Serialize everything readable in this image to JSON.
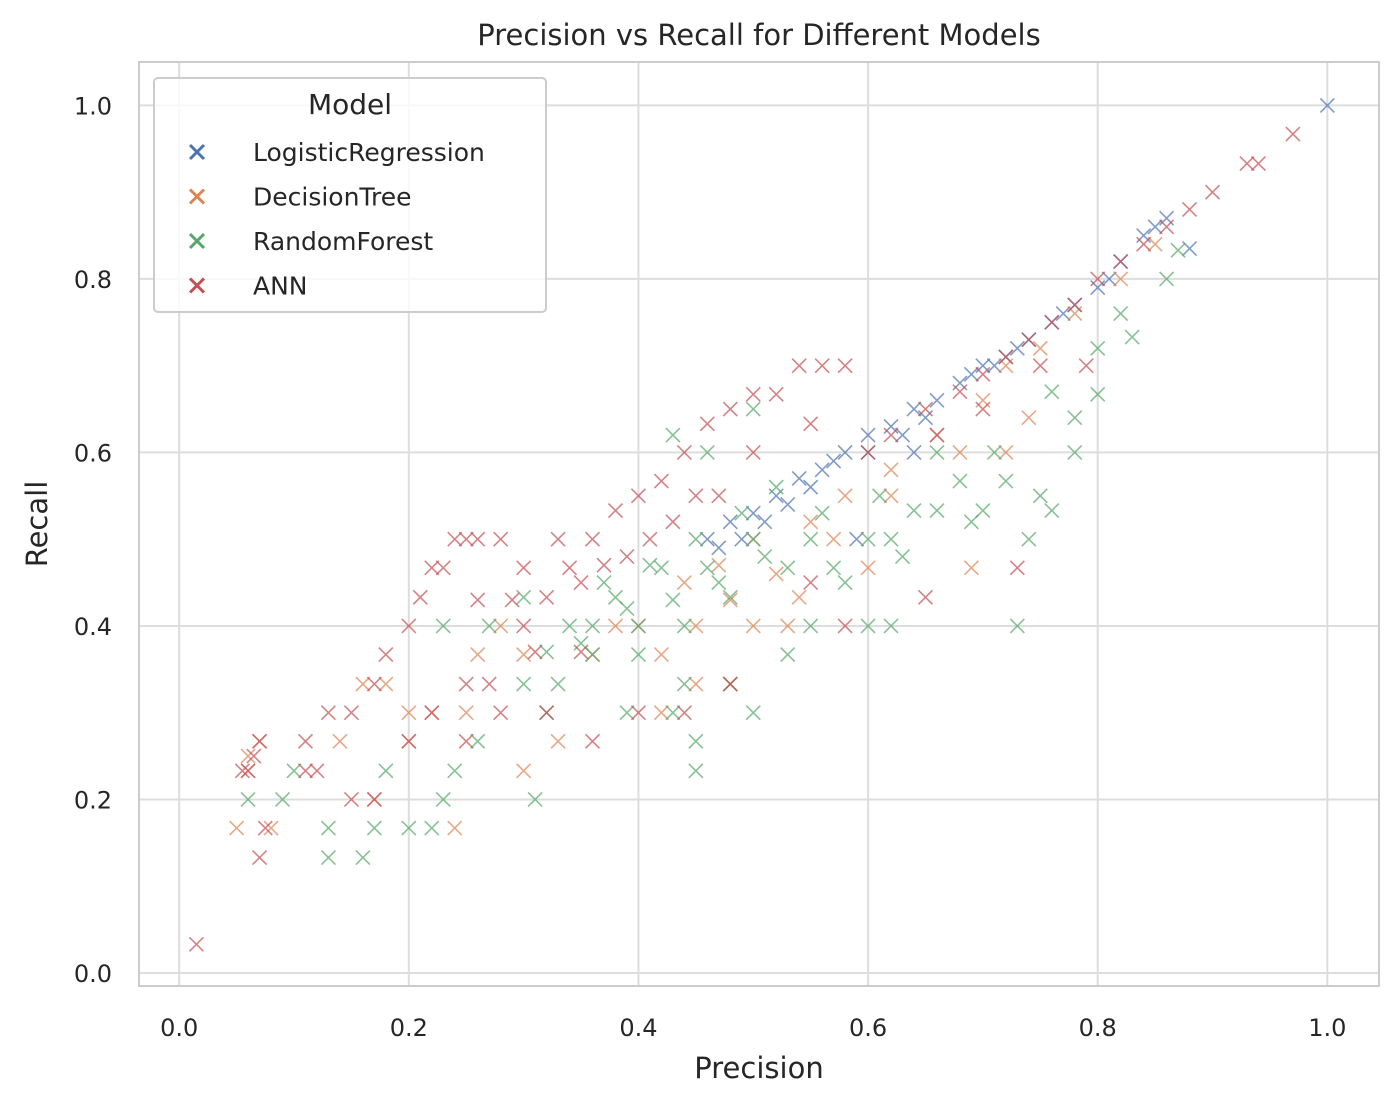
{
  "chart_data": {
    "type": "scatter",
    "title": "Precision vs Recall for Different Models",
    "xlabel": "Precision",
    "ylabel": "Recall",
    "xlim": [
      -0.035,
      1.045
    ],
    "ylim": [
      -0.015,
      1.05
    ],
    "xticks": [
      "0.0",
      "0.2",
      "0.4",
      "0.6",
      "0.8",
      "1.0"
    ],
    "yticks": [
      "0.0",
      "0.2",
      "0.4",
      "0.6",
      "0.8",
      "1.0"
    ],
    "grid": true,
    "marker": "x",
    "legend": {
      "title": "Model",
      "position": "top-left"
    },
    "series": [
      {
        "name": "LogisticRegression",
        "color": "#4c72b0",
        "points": [
          [
            1.0,
            1.0
          ],
          [
            0.88,
            0.835
          ],
          [
            0.86,
            0.87
          ],
          [
            0.84,
            0.85
          ],
          [
            0.82,
            0.82
          ],
          [
            0.8,
            0.79
          ],
          [
            0.78,
            0.77
          ],
          [
            0.76,
            0.75
          ],
          [
            0.74,
            0.73
          ],
          [
            0.72,
            0.71
          ],
          [
            0.7,
            0.7
          ],
          [
            0.68,
            0.68
          ],
          [
            0.66,
            0.66
          ],
          [
            0.64,
            0.65
          ],
          [
            0.62,
            0.63
          ],
          [
            0.6,
            0.62
          ],
          [
            0.58,
            0.6
          ],
          [
            0.56,
            0.58
          ],
          [
            0.54,
            0.57
          ],
          [
            0.52,
            0.55
          ],
          [
            0.5,
            0.53
          ],
          [
            0.48,
            0.52
          ],
          [
            0.46,
            0.5
          ],
          [
            0.6,
            0.6
          ],
          [
            0.55,
            0.56
          ],
          [
            0.53,
            0.54
          ],
          [
            0.51,
            0.52
          ],
          [
            0.49,
            0.5
          ],
          [
            0.47,
            0.49
          ],
          [
            0.65,
            0.64
          ],
          [
            0.57,
            0.59
          ],
          [
            0.63,
            0.62
          ],
          [
            0.69,
            0.69
          ],
          [
            0.73,
            0.72
          ],
          [
            0.77,
            0.76
          ],
          [
            0.81,
            0.8
          ],
          [
            0.85,
            0.86
          ],
          [
            0.59,
            0.5
          ],
          [
            0.64,
            0.6
          ],
          [
            0.71,
            0.7
          ]
        ]
      },
      {
        "name": "DecisionTree",
        "color": "#dd8452",
        "points": [
          [
            0.05,
            0.167
          ],
          [
            0.06,
            0.25
          ],
          [
            0.06,
            0.233
          ],
          [
            0.07,
            0.267
          ],
          [
            0.08,
            0.167
          ],
          [
            0.24,
            0.167
          ],
          [
            0.17,
            0.2
          ],
          [
            0.14,
            0.267
          ],
          [
            0.2,
            0.267
          ],
          [
            0.22,
            0.3
          ],
          [
            0.25,
            0.3
          ],
          [
            0.3,
            0.233
          ],
          [
            0.33,
            0.267
          ],
          [
            0.42,
            0.3
          ],
          [
            0.45,
            0.333
          ],
          [
            0.48,
            0.333
          ],
          [
            0.5,
            0.4
          ],
          [
            0.53,
            0.4
          ],
          [
            0.54,
            0.433
          ],
          [
            0.6,
            0.467
          ],
          [
            0.69,
            0.467
          ],
          [
            0.45,
            0.4
          ],
          [
            0.42,
            0.367
          ],
          [
            0.4,
            0.4
          ],
          [
            0.38,
            0.4
          ],
          [
            0.36,
            0.367
          ],
          [
            0.44,
            0.45
          ],
          [
            0.47,
            0.47
          ],
          [
            0.5,
            0.5
          ],
          [
            0.55,
            0.52
          ],
          [
            0.58,
            0.55
          ],
          [
            0.62,
            0.58
          ],
          [
            0.66,
            0.62
          ],
          [
            0.7,
            0.66
          ],
          [
            0.72,
            0.7
          ],
          [
            0.75,
            0.72
          ],
          [
            0.78,
            0.76
          ],
          [
            0.82,
            0.8
          ],
          [
            0.85,
            0.84
          ],
          [
            0.72,
            0.6
          ],
          [
            0.74,
            0.64
          ],
          [
            0.68,
            0.6
          ],
          [
            0.62,
            0.55
          ],
          [
            0.57,
            0.5
          ],
          [
            0.52,
            0.46
          ],
          [
            0.48,
            0.43
          ],
          [
            0.28,
            0.4
          ],
          [
            0.3,
            0.367
          ],
          [
            0.2,
            0.3
          ],
          [
            0.16,
            0.333
          ],
          [
            0.18,
            0.333
          ],
          [
            0.26,
            0.367
          ]
        ]
      },
      {
        "name": "RandomForest",
        "color": "#55a868",
        "points": [
          [
            0.06,
            0.2
          ],
          [
            0.09,
            0.2
          ],
          [
            0.1,
            0.233
          ],
          [
            0.13,
            0.167
          ],
          [
            0.13,
            0.133
          ],
          [
            0.16,
            0.133
          ],
          [
            0.17,
            0.167
          ],
          [
            0.2,
            0.167
          ],
          [
            0.22,
            0.167
          ],
          [
            0.23,
            0.2
          ],
          [
            0.31,
            0.2
          ],
          [
            0.18,
            0.233
          ],
          [
            0.24,
            0.233
          ],
          [
            0.26,
            0.267
          ],
          [
            0.32,
            0.3
          ],
          [
            0.39,
            0.3
          ],
          [
            0.43,
            0.3
          ],
          [
            0.45,
            0.267
          ],
          [
            0.45,
            0.233
          ],
          [
            0.5,
            0.3
          ],
          [
            0.53,
            0.367
          ],
          [
            0.55,
            0.4
          ],
          [
            0.6,
            0.4
          ],
          [
            0.62,
            0.4
          ],
          [
            0.73,
            0.4
          ],
          [
            0.48,
            0.333
          ],
          [
            0.44,
            0.333
          ],
          [
            0.4,
            0.367
          ],
          [
            0.36,
            0.367
          ],
          [
            0.33,
            0.333
          ],
          [
            0.3,
            0.333
          ],
          [
            0.27,
            0.4
          ],
          [
            0.23,
            0.4
          ],
          [
            0.3,
            0.433
          ],
          [
            0.34,
            0.4
          ],
          [
            0.38,
            0.433
          ],
          [
            0.42,
            0.467
          ],
          [
            0.46,
            0.467
          ],
          [
            0.5,
            0.5
          ],
          [
            0.55,
            0.5
          ],
          [
            0.6,
            0.5
          ],
          [
            0.66,
            0.533
          ],
          [
            0.7,
            0.533
          ],
          [
            0.74,
            0.5
          ],
          [
            0.76,
            0.533
          ],
          [
            0.78,
            0.6
          ],
          [
            0.8,
            0.667
          ],
          [
            0.83,
            0.733
          ],
          [
            0.86,
            0.8
          ],
          [
            0.87,
            0.833
          ],
          [
            0.72,
            0.567
          ],
          [
            0.68,
            0.567
          ],
          [
            0.64,
            0.533
          ],
          [
            0.62,
            0.5
          ],
          [
            0.57,
            0.467
          ],
          [
            0.53,
            0.467
          ],
          [
            0.48,
            0.433
          ],
          [
            0.44,
            0.4
          ],
          [
            0.4,
            0.4
          ],
          [
            0.36,
            0.4
          ],
          [
            0.58,
            0.45
          ],
          [
            0.63,
            0.48
          ],
          [
            0.69,
            0.52
          ],
          [
            0.75,
            0.55
          ],
          [
            0.71,
            0.6
          ],
          [
            0.66,
            0.6
          ],
          [
            0.61,
            0.55
          ],
          [
            0.56,
            0.53
          ],
          [
            0.51,
            0.48
          ],
          [
            0.47,
            0.45
          ],
          [
            0.43,
            0.43
          ],
          [
            0.39,
            0.42
          ],
          [
            0.35,
            0.38
          ],
          [
            0.32,
            0.37
          ],
          [
            0.37,
            0.45
          ],
          [
            0.41,
            0.47
          ],
          [
            0.45,
            0.5
          ],
          [
            0.49,
            0.53
          ],
          [
            0.52,
            0.56
          ],
          [
            0.46,
            0.6
          ],
          [
            0.43,
            0.62
          ],
          [
            0.5,
            0.65
          ],
          [
            0.78,
            0.64
          ],
          [
            0.76,
            0.67
          ],
          [
            0.8,
            0.72
          ],
          [
            0.82,
            0.76
          ]
        ]
      },
      {
        "name": "ANN",
        "color": "#c44e52",
        "points": [
          [
            0.015,
            0.033
          ],
          [
            0.055,
            0.233
          ],
          [
            0.06,
            0.233
          ],
          [
            0.065,
            0.25
          ],
          [
            0.07,
            0.267
          ],
          [
            0.075,
            0.167
          ],
          [
            0.07,
            0.133
          ],
          [
            0.12,
            0.233
          ],
          [
            0.11,
            0.233
          ],
          [
            0.15,
            0.2
          ],
          [
            0.17,
            0.2
          ],
          [
            0.11,
            0.267
          ],
          [
            0.13,
            0.3
          ],
          [
            0.15,
            0.3
          ],
          [
            0.17,
            0.333
          ],
          [
            0.18,
            0.367
          ],
          [
            0.2,
            0.4
          ],
          [
            0.21,
            0.433
          ],
          [
            0.22,
            0.467
          ],
          [
            0.23,
            0.467
          ],
          [
            0.24,
            0.5
          ],
          [
            0.25,
            0.5
          ],
          [
            0.26,
            0.5
          ],
          [
            0.28,
            0.5
          ],
          [
            0.2,
            0.267
          ],
          [
            0.22,
            0.3
          ],
          [
            0.25,
            0.333
          ],
          [
            0.27,
            0.333
          ],
          [
            0.3,
            0.4
          ],
          [
            0.32,
            0.433
          ],
          [
            0.34,
            0.467
          ],
          [
            0.36,
            0.5
          ],
          [
            0.38,
            0.533
          ],
          [
            0.4,
            0.55
          ],
          [
            0.42,
            0.567
          ],
          [
            0.44,
            0.6
          ],
          [
            0.46,
            0.633
          ],
          [
            0.48,
            0.65
          ],
          [
            0.5,
            0.667
          ],
          [
            0.52,
            0.667
          ],
          [
            0.54,
            0.7
          ],
          [
            0.56,
            0.7
          ],
          [
            0.58,
            0.7
          ],
          [
            0.55,
            0.633
          ],
          [
            0.45,
            0.55
          ],
          [
            0.5,
            0.6
          ],
          [
            0.6,
            0.6
          ],
          [
            0.62,
            0.62
          ],
          [
            0.65,
            0.65
          ],
          [
            0.68,
            0.67
          ],
          [
            0.7,
            0.69
          ],
          [
            0.72,
            0.71
          ],
          [
            0.74,
            0.73
          ],
          [
            0.76,
            0.75
          ],
          [
            0.78,
            0.77
          ],
          [
            0.8,
            0.8
          ],
          [
            0.82,
            0.82
          ],
          [
            0.84,
            0.84
          ],
          [
            0.86,
            0.86
          ],
          [
            0.88,
            0.88
          ],
          [
            0.9,
            0.9
          ],
          [
            0.93,
            0.933
          ],
          [
            0.94,
            0.933
          ],
          [
            0.97,
            0.967
          ],
          [
            0.73,
            0.467
          ],
          [
            0.58,
            0.4
          ],
          [
            0.65,
            0.433
          ],
          [
            0.55,
            0.45
          ],
          [
            0.48,
            0.333
          ],
          [
            0.44,
            0.3
          ],
          [
            0.4,
            0.3
          ],
          [
            0.36,
            0.267
          ],
          [
            0.32,
            0.3
          ],
          [
            0.28,
            0.3
          ],
          [
            0.25,
            0.267
          ],
          [
            0.3,
            0.467
          ],
          [
            0.33,
            0.5
          ],
          [
            0.35,
            0.45
          ],
          [
            0.43,
            0.52
          ],
          [
            0.47,
            0.55
          ],
          [
            0.41,
            0.5
          ],
          [
            0.39,
            0.48
          ],
          [
            0.37,
            0.47
          ],
          [
            0.29,
            0.43
          ],
          [
            0.26,
            0.43
          ],
          [
            0.31,
            0.37
          ],
          [
            0.35,
            0.37
          ],
          [
            0.79,
            0.7
          ],
          [
            0.75,
            0.7
          ],
          [
            0.7,
            0.65
          ],
          [
            0.66,
            0.62
          ]
        ]
      }
    ]
  }
}
